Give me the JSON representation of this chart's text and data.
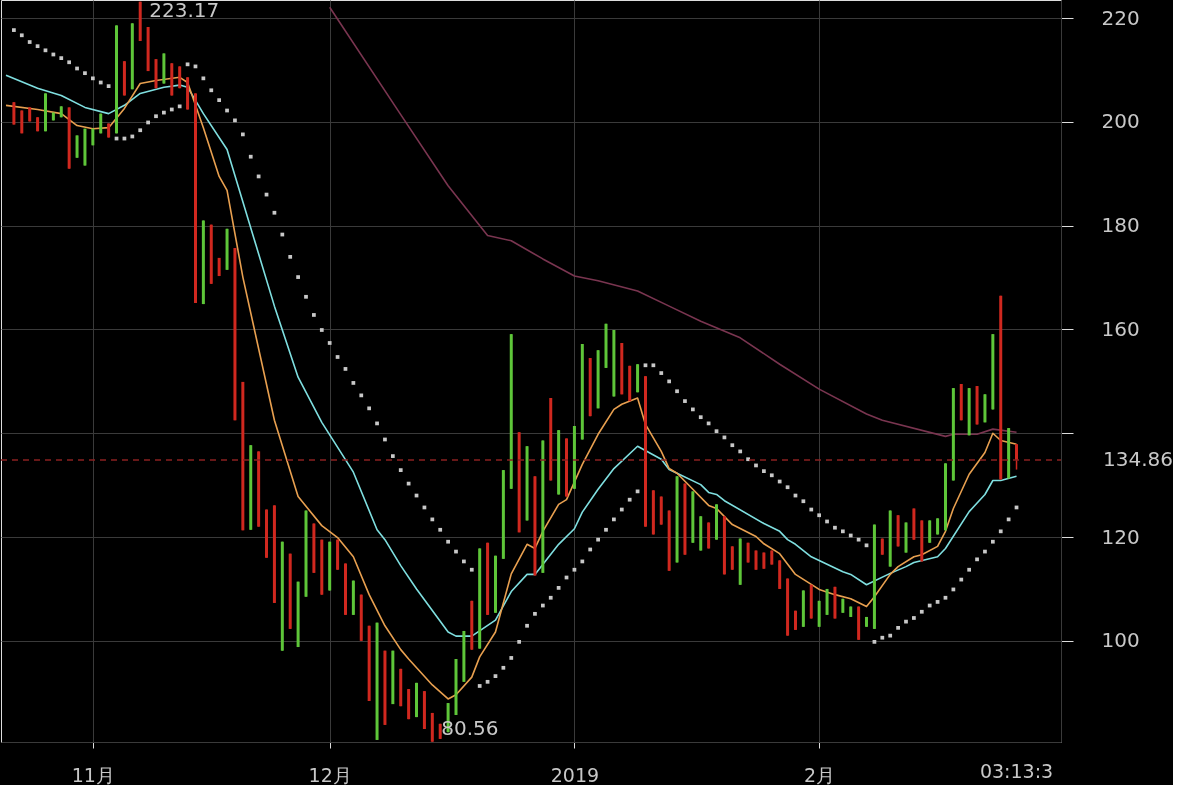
{
  "chart_data": {
    "type": "candlestick",
    "x": [
      "2018-10-22",
      "2018-10-23",
      "2018-10-24",
      "2018-10-25",
      "2018-10-26",
      "2018-10-27",
      "2018-10-28",
      "2018-10-29",
      "2018-10-30",
      "2018-10-31",
      "2018-11-01",
      "2018-11-02",
      "2018-11-03",
      "2018-11-04",
      "2018-11-05",
      "2018-11-06",
      "2018-11-07",
      "2018-11-08",
      "2018-11-09",
      "2018-11-10",
      "2018-11-11",
      "2018-11-12",
      "2018-11-13",
      "2018-11-14",
      "2018-11-15",
      "2018-11-16",
      "2018-11-17",
      "2018-11-18",
      "2018-11-19",
      "2018-11-20",
      "2018-11-21",
      "2018-11-22",
      "2018-11-23",
      "2018-11-24",
      "2018-11-25",
      "2018-11-26",
      "2018-11-27",
      "2018-11-28",
      "2018-11-29",
      "2018-11-30",
      "2018-12-01",
      "2018-12-02",
      "2018-12-03",
      "2018-12-04",
      "2018-12-05",
      "2018-12-06",
      "2018-12-07",
      "2018-12-08",
      "2018-12-09",
      "2018-12-10",
      "2018-12-11",
      "2018-12-12",
      "2018-12-13",
      "2018-12-14",
      "2018-12-15",
      "2018-12-16",
      "2018-12-17",
      "2018-12-18",
      "2018-12-19",
      "2018-12-20",
      "2018-12-21",
      "2018-12-22",
      "2018-12-23",
      "2018-12-24",
      "2018-12-25",
      "2018-12-26",
      "2018-12-27",
      "2018-12-28",
      "2018-12-29",
      "2018-12-30",
      "2018-12-31",
      "2019-01-01",
      "2019-01-02",
      "2019-01-03",
      "2019-01-04",
      "2019-01-05",
      "2019-01-06",
      "2019-01-07",
      "2019-01-08",
      "2019-01-09",
      "2019-01-10",
      "2019-01-11",
      "2019-01-12",
      "2019-01-13",
      "2019-01-14",
      "2019-01-15",
      "2019-01-16",
      "2019-01-17",
      "2019-01-18",
      "2019-01-19",
      "2019-01-20",
      "2019-01-21",
      "2019-01-22",
      "2019-01-23",
      "2019-01-24",
      "2019-01-25",
      "2019-01-26",
      "2019-01-27",
      "2019-01-28",
      "2019-01-29",
      "2019-01-30",
      "2019-01-31",
      "2019-02-01",
      "2019-02-02",
      "2019-02-03",
      "2019-02-04",
      "2019-02-05",
      "2019-02-06",
      "2019-02-07",
      "2019-02-08",
      "2019-02-09",
      "2019-02-10",
      "2019-02-11",
      "2019-02-12",
      "2019-02-13",
      "2019-02-14",
      "2019-02-15",
      "2019-02-16",
      "2019-02-17",
      "2019-02-18",
      "2019-02-19",
      "2019-02-20",
      "2019-02-21",
      "2019-02-22",
      "2019-02-23",
      "2019-02-24",
      "2019-02-25",
      "2019-02-26"
    ],
    "ohlc": [
      [
        203.8,
        203.8,
        199.5,
        199.5
      ],
      [
        202.2,
        202.2,
        197.8,
        197.8
      ],
      [
        202.8,
        202.8,
        200.1,
        200.1
      ],
      [
        200.9,
        200.9,
        198.2,
        198.2
      ],
      [
        198.2,
        205.5,
        198.2,
        205.5
      ],
      [
        200.3,
        201.8,
        200.3,
        201.8
      ],
      [
        200.9,
        203,
        200.9,
        203
      ],
      [
        202.8,
        202.8,
        191,
        191
      ],
      [
        193.1,
        197.4,
        193.1,
        197.4
      ],
      [
        191.6,
        198.7,
        191.6,
        198.7
      ],
      [
        195.5,
        198.7,
        195.5,
        198.7
      ],
      [
        197.8,
        201.6,
        197.8,
        201.6
      ],
      [
        199.7,
        199.7,
        197,
        197
      ],
      [
        197.8,
        218.6,
        197.8,
        218.6
      ],
      [
        211.7,
        211.7,
        205.1,
        205.1
      ],
      [
        206.3,
        219,
        206.3,
        219
      ],
      [
        223.17,
        223.17,
        215.6,
        215.6
      ],
      [
        218.3,
        218.3,
        209.8,
        209.8
      ],
      [
        212.1,
        212.1,
        206.5,
        206.5
      ],
      [
        207.4,
        213.2,
        207.4,
        213.2
      ],
      [
        211.3,
        211.3,
        205.1,
        205.1
      ],
      [
        210.7,
        210.7,
        206.5,
        206.5
      ],
      [
        208.6,
        208.6,
        202.4,
        202.4
      ],
      [
        205.5,
        205.5,
        165.1,
        165.1
      ],
      [
        164.9,
        181,
        164.9,
        181
      ],
      [
        180.2,
        180.2,
        168.8,
        168.8
      ],
      [
        173.8,
        173.8,
        170.3,
        170.3
      ],
      [
        171.5,
        179.4,
        171.5,
        179.4
      ],
      [
        175.7,
        175.7,
        142.5,
        142.5
      ],
      [
        149.9,
        149.9,
        121.3,
        121.3
      ],
      [
        121.4,
        137.7,
        121.4,
        137.7
      ],
      [
        136.5,
        136.5,
        122,
        122
      ],
      [
        125.3,
        125.3,
        116,
        116
      ],
      [
        126.1,
        126.1,
        107.3,
        107.3
      ],
      [
        98.1,
        119.1,
        98.1,
        119.1
      ],
      [
        116.8,
        116.8,
        102.3,
        102.3
      ],
      [
        98.8,
        111.4,
        98.8,
        111.4
      ],
      [
        108.5,
        125.1,
        108.5,
        125.1
      ],
      [
        122.6,
        122.6,
        113.1,
        113.1
      ],
      [
        119.5,
        119.5,
        108.9,
        108.9
      ],
      [
        109.7,
        119.1,
        109.7,
        119.1
      ],
      [
        119.5,
        119.5,
        113.7,
        113.7
      ],
      [
        114.9,
        114.9,
        105,
        105
      ],
      [
        105,
        111.6,
        105,
        111.6
      ],
      [
        108.9,
        108.9,
        100,
        100
      ],
      [
        102.9,
        102.9,
        88.4,
        88.4
      ],
      [
        80.9,
        103.5,
        80.9,
        103.5
      ],
      [
        98.1,
        98.1,
        83.8,
        83.8
      ],
      [
        87.8,
        98.1,
        87.8,
        98.1
      ],
      [
        94.6,
        94.6,
        87.4,
        87.4
      ],
      [
        90.7,
        90.7,
        84.9,
        84.9
      ],
      [
        85.3,
        91.9,
        85.3,
        91.9
      ],
      [
        90.3,
        90.3,
        83,
        83
      ],
      [
        86.1,
        86.1,
        80.56,
        80.56
      ],
      [
        84,
        84,
        81.1,
        81.1
      ],
      [
        82.4,
        88,
        82.4,
        88
      ],
      [
        85.7,
        96.5,
        85.7,
        96.5
      ],
      [
        92.1,
        101.9,
        92.1,
        101.9
      ],
      [
        107.7,
        107.7,
        98.3,
        98.3
      ],
      [
        98.5,
        117.8,
        98.5,
        117.8
      ],
      [
        118.9,
        118.9,
        105,
        105
      ],
      [
        105.4,
        116.4,
        105.4,
        116.4
      ],
      [
        115.8,
        132.9,
        115.8,
        132.9
      ],
      [
        129.3,
        159.1,
        129.3,
        159.1
      ],
      [
        140.2,
        140.2,
        120.9,
        120.9
      ],
      [
        123.2,
        137.5,
        123.2,
        137.5
      ],
      [
        131.7,
        131.7,
        112.6,
        112.6
      ],
      [
        113.1,
        138.6,
        113.1,
        138.6
      ],
      [
        146.8,
        146.8,
        130.9,
        130.9
      ],
      [
        128.2,
        140.6,
        128.2,
        140.6
      ],
      [
        139,
        139,
        127.8,
        127.8
      ],
      [
        129.3,
        141.4,
        129.3,
        141.4
      ],
      [
        138.8,
        157.2,
        138.8,
        157.2
      ],
      [
        154.5,
        154.5,
        143.3,
        143.3
      ],
      [
        144.8,
        156,
        144.8,
        156
      ],
      [
        152.6,
        161.1,
        152.6,
        161.1
      ],
      [
        147.1,
        159.9,
        147.1,
        159.9
      ],
      [
        157.4,
        157.4,
        147.5,
        147.5
      ],
      [
        153,
        153,
        146.2,
        146.2
      ],
      [
        147.9,
        153.3,
        147.9,
        153.3
      ],
      [
        151,
        151,
        122,
        122
      ],
      [
        129,
        129,
        120.5,
        120.5
      ],
      [
        127.8,
        127.8,
        122.4,
        122.4
      ],
      [
        125.1,
        125.1,
        113.5,
        113.5
      ],
      [
        115.1,
        131.7,
        115.1,
        131.7
      ],
      [
        130.3,
        130.3,
        116.6,
        116.6
      ],
      [
        118.9,
        128.8,
        118.9,
        128.8
      ],
      [
        117.4,
        124,
        117.4,
        124
      ],
      [
        122.8,
        122.8,
        117.8,
        117.8
      ],
      [
        119.5,
        126.3,
        119.5,
        126.3
      ],
      [
        124,
        124,
        112.8,
        112.8
      ],
      [
        118.2,
        118.2,
        113.7,
        113.7
      ],
      [
        110.8,
        119.7,
        110.8,
        119.7
      ],
      [
        118.9,
        118.9,
        115.1,
        115.1
      ],
      [
        117.4,
        117.4,
        113.7,
        113.7
      ],
      [
        117,
        117,
        113.9,
        113.9
      ],
      [
        117.4,
        117.4,
        114.7,
        114.7
      ],
      [
        115.5,
        115.5,
        110,
        110
      ],
      [
        112,
        112,
        101,
        101
      ],
      [
        105.8,
        105.8,
        102.1,
        102.1
      ],
      [
        102.7,
        109.7,
        102.7,
        109.7
      ],
      [
        110.8,
        110.8,
        104.3,
        104.3
      ],
      [
        102.7,
        107.7,
        102.7,
        107.7
      ],
      [
        105,
        110,
        105,
        110
      ],
      [
        110.4,
        110.4,
        104.3,
        104.3
      ],
      [
        105.4,
        108.1,
        105.4,
        108.1
      ],
      [
        104.6,
        106.6,
        104.6,
        106.6
      ],
      [
        106.6,
        106.6,
        100.2,
        100.2
      ],
      [
        102.7,
        104.6,
        102.7,
        104.6
      ],
      [
        102.3,
        122.4,
        102.3,
        122.4
      ],
      [
        119.7,
        119.7,
        116.6,
        116.6
      ],
      [
        114.3,
        125.1,
        114.3,
        125.1
      ],
      [
        124.2,
        124.2,
        118.2,
        118.2
      ],
      [
        117,
        122.8,
        117,
        122.8
      ],
      [
        125.5,
        125.5,
        119.5,
        119.5
      ],
      [
        123.2,
        123.2,
        115.3,
        115.3
      ],
      [
        118.9,
        123.2,
        118.9,
        123.2
      ],
      [
        120.5,
        123.6,
        120.5,
        123.6
      ],
      [
        121.3,
        134.2,
        121.3,
        134.2
      ],
      [
        130.9,
        148.7,
        130.9,
        148.7
      ],
      [
        149.5,
        149.5,
        142.5,
        142.5
      ],
      [
        139.6,
        148.7,
        139.6,
        148.7
      ],
      [
        149.1,
        149.1,
        141.7,
        141.7
      ],
      [
        142.1,
        147.5,
        142.1,
        147.5
      ],
      [
        144.6,
        159.1,
        144.6,
        159.1
      ],
      [
        166.5,
        166.5,
        131.1,
        131.1
      ],
      [
        131.3,
        141,
        131.3,
        141
      ],
      [
        137.9,
        137.9,
        133,
        134.86
      ]
    ],
    "colors": [
      "#d0281f",
      "#d0281f",
      "#d0281f",
      "#d0281f",
      "#5ec639",
      "#5ec639",
      "#5ec639",
      "#d0281f",
      "#5ec639",
      "#5ec639",
      "#5ec639",
      "#5ec639",
      "#d0281f",
      "#5ec639",
      "#d0281f",
      "#5ec639",
      "#d0281f",
      "#d0281f",
      "#d0281f",
      "#5ec639",
      "#d0281f",
      "#d0281f",
      "#d0281f",
      "#d0281f",
      "#5ec639",
      "#d0281f",
      "#d0281f",
      "#5ec639",
      "#d0281f",
      "#d0281f",
      "#5ec639",
      "#d0281f",
      "#d0281f",
      "#d0281f",
      "#5ec639",
      "#d0281f",
      "#5ec639",
      "#5ec639",
      "#d0281f",
      "#d0281f",
      "#5ec639",
      "#d0281f",
      "#d0281f",
      "#5ec639",
      "#d0281f",
      "#d0281f",
      "#5ec639",
      "#d0281f",
      "#5ec639",
      "#d0281f",
      "#d0281f",
      "#5ec639",
      "#d0281f",
      "#d0281f",
      "#d0281f",
      "#5ec639",
      "#5ec639",
      "#5ec639",
      "#d0281f",
      "#5ec639",
      "#d0281f",
      "#5ec639",
      "#5ec639",
      "#5ec639",
      "#d0281f",
      "#5ec639",
      "#d0281f",
      "#5ec639",
      "#d0281f",
      "#5ec639",
      "#d0281f",
      "#5ec639",
      "#5ec639",
      "#d0281f",
      "#5ec639",
      "#5ec639",
      "#5ec639",
      "#d0281f",
      "#d0281f",
      "#5ec639",
      "#d0281f",
      "#d0281f",
      "#d0281f",
      "#d0281f",
      "#5ec639",
      "#d0281f",
      "#5ec639",
      "#5ec639",
      "#d0281f",
      "#5ec639",
      "#d0281f",
      "#d0281f",
      "#5ec639",
      "#d0281f",
      "#d0281f",
      "#d0281f",
      "#d0281f",
      "#d0281f",
      "#d0281f",
      "#d0281f",
      "#5ec639",
      "#d0281f",
      "#5ec639",
      "#5ec639",
      "#d0281f",
      "#5ec639",
      "#5ec639",
      "#d0281f",
      "#5ec639",
      "#5ec639",
      "#d0281f",
      "#5ec639",
      "#d0281f",
      "#5ec639",
      "#d0281f",
      "#d0281f",
      "#5ec639",
      "#5ec639",
      "#5ec639",
      "#5ec639",
      "#d0281f",
      "#5ec639",
      "#d0281f",
      "#5ec639",
      "#5ec639",
      "#d0281f",
      "#5ec639",
      "#d0281f"
    ],
    "series": [
      {
        "type": "line",
        "color": "#7a3550",
        "x": [
          "2018-12-01",
          "2018-12-10",
          "2018-12-16",
          "2018-12-21",
          "2018-12-24",
          "2018-12-28",
          "2019-01-01",
          "2019-01-04",
          "2019-01-09",
          "2019-01-13",
          "2019-01-17",
          "2019-01-22",
          "2019-01-27",
          "2019-02-01",
          "2019-02-07",
          "2019-02-09",
          "2019-02-17",
          "2019-02-18",
          "2019-02-21",
          "2019-02-23",
          "2019-02-26"
        ],
        "values": [
          222.1,
          201.4,
          187.7,
          178.1,
          177.1,
          173.6,
          170.3,
          169.4,
          167.4,
          164.5,
          161.6,
          158.4,
          153.3,
          148.5,
          143.7,
          142.5,
          139.4,
          139.8,
          139.8,
          140.8,
          140.2
        ]
      },
      {
        "type": "line",
        "color": "#7fdfe0",
        "x": [
          "2018-10-21",
          "2018-10-25",
          "2018-10-28",
          "2018-10-31",
          "2018-11-03",
          "2018-11-05",
          "2018-11-07",
          "2018-11-10",
          "2018-11-12",
          "2018-11-13",
          "2018-11-15",
          "2018-11-18",
          "2018-11-24",
          "2018-11-27",
          "2018-11-30",
          "2018-12-04",
          "2018-12-07",
          "2018-12-08",
          "2018-12-10",
          "2018-12-12",
          "2018-12-16",
          "2018-12-17",
          "2018-12-19",
          "2018-12-22",
          "2018-12-24",
          "2018-12-26",
          "2018-12-27",
          "2018-12-30",
          "2019-01-01",
          "2019-01-02",
          "2019-01-04",
          "2019-01-06",
          "2019-01-09",
          "2019-01-12",
          "2019-01-13",
          "2019-01-14",
          "2019-01-17",
          "2019-01-18",
          "2019-01-19",
          "2019-01-20",
          "2019-01-25",
          "2019-01-27",
          "2019-01-28",
          "2019-01-29",
          "2019-01-31",
          "2019-02-04",
          "2019-02-05",
          "2019-02-07",
          "2019-02-10",
          "2019-02-12",
          "2019-02-13",
          "2019-02-16",
          "2019-02-17",
          "2019-02-20",
          "2019-02-22",
          "2019-02-23",
          "2019-02-24",
          "2019-02-26"
        ],
        "values": [
          209,
          206.5,
          205.1,
          202.8,
          201.6,
          203.2,
          205.5,
          206.7,
          207.1,
          206.7,
          201.6,
          194.7,
          164.5,
          150.8,
          142.1,
          132.5,
          121.4,
          119.5,
          114.5,
          110,
          101.7,
          100.9,
          100.9,
          104,
          109.5,
          112.8,
          112.8,
          118.6,
          121.6,
          124.8,
          129.2,
          133.2,
          137.5,
          135,
          133,
          132.3,
          130.1,
          128.6,
          128.2,
          127,
          122.6,
          121.1,
          119.5,
          118.6,
          116.2,
          113.3,
          112.8,
          110.8,
          113,
          114.3,
          115.1,
          116.2,
          117.8,
          124.9,
          128.2,
          130.9,
          130.9,
          131.7
        ]
      },
      {
        "type": "line",
        "color": "#e8a050",
        "x": [
          "2018-10-21",
          "2018-10-25",
          "2018-10-28",
          "2018-10-30",
          "2018-11-01",
          "2018-11-03",
          "2018-11-05",
          "2018-11-07",
          "2018-11-09",
          "2018-11-12",
          "2018-11-13",
          "2018-11-15",
          "2018-11-17",
          "2018-11-18",
          "2018-11-20",
          "2018-11-24",
          "2018-11-27",
          "2018-11-30",
          "2018-12-02",
          "2018-12-04",
          "2018-12-06",
          "2018-12-08",
          "2018-12-10",
          "2018-12-11",
          "2018-12-14",
          "2018-12-16",
          "2018-12-17",
          "2018-12-19",
          "2018-12-20",
          "2018-12-22",
          "2018-12-24",
          "2018-12-26",
          "2018-12-27",
          "2018-12-28",
          "2018-12-30",
          "2018-12-31",
          "2019-01-02",
          "2019-01-04",
          "2019-01-06",
          "2019-01-07",
          "2019-01-09",
          "2019-01-10",
          "2019-01-12",
          "2019-01-13",
          "2019-01-14",
          "2019-01-16",
          "2019-01-18",
          "2019-01-19",
          "2019-01-21",
          "2019-01-24",
          "2019-01-25",
          "2019-01-27",
          "2019-01-29",
          "2019-02-01",
          "2019-02-03",
          "2019-02-05",
          "2019-02-07",
          "2019-02-08",
          "2019-02-10",
          "2019-02-11",
          "2019-02-13",
          "2019-02-14",
          "2019-02-16",
          "2019-02-17",
          "2019-02-18",
          "2019-02-20",
          "2019-02-22",
          "2019-02-23",
          "2019-02-24",
          "2019-02-26"
        ],
        "values": [
          203.2,
          202.4,
          201.6,
          199.3,
          198.7,
          198.9,
          202.6,
          207.4,
          208,
          208.6,
          207.6,
          198.9,
          189.5,
          186.8,
          170.1,
          142.5,
          127.8,
          122.2,
          119.9,
          116.2,
          108.9,
          102.9,
          98.3,
          96.5,
          91.5,
          88.8,
          89.6,
          93,
          96.9,
          101.7,
          112.9,
          118.6,
          117.8,
          121.1,
          126.3,
          127.2,
          134,
          139.8,
          144.6,
          145.6,
          146.8,
          141.7,
          136.5,
          133.2,
          132.3,
          129.2,
          126.1,
          125.5,
          122.4,
          120.1,
          118.7,
          116.8,
          112.8,
          109.9,
          108.9,
          108.1,
          106.6,
          108.5,
          112.8,
          114.3,
          116.2,
          116.6,
          118.2,
          121.1,
          125.5,
          132.1,
          136.3,
          140,
          138.6,
          137.9
        ]
      },
      {
        "type": "scatter",
        "marker": "square",
        "color": "#c8c8c8",
        "values": [
          217.7,
          216.7,
          215.4,
          214.6,
          213.8,
          213,
          212.3,
          211.5,
          210.3,
          209.4,
          208.4,
          207.6,
          206.9,
          196.8,
          196.8,
          197.2,
          198.4,
          199.9,
          201.1,
          201.8,
          202.4,
          203,
          211.1,
          210.7,
          208.4,
          206.1,
          204.2,
          202.2,
          200.3,
          197.6,
          193.3,
          189.5,
          186,
          182.5,
          178.3,
          174,
          170.1,
          166.3,
          162.8,
          159.9,
          157.4,
          154.7,
          152.4,
          149.7,
          147.3,
          144.8,
          141.9,
          138.8,
          135.6,
          132.9,
          130.3,
          128,
          125.7,
          123.4,
          121.4,
          119.1,
          117.2,
          115.3,
          113.7,
          91.3,
          92.1,
          93.2,
          94.8,
          96.7,
          99.8,
          102.9,
          105.2,
          106.8,
          108.3,
          110.2,
          112.2,
          113.7,
          115.3,
          117.6,
          119.5,
          121.4,
          123.4,
          125.3,
          127.2,
          128.8,
          153.1,
          153.1,
          151.6,
          150,
          148.1,
          146.2,
          144.6,
          143.1,
          141.9,
          140.4,
          139.2,
          137.7,
          136.5,
          135,
          133.8,
          132.7,
          131.9,
          130.7,
          129.6,
          128,
          126.9,
          125.3,
          124.2,
          123,
          121.8,
          121.1,
          120.3,
          119.5,
          118.4,
          99.8,
          100.6,
          101,
          102.5,
          103.7,
          104.4,
          105.6,
          106.8,
          107.5,
          108.3,
          109.9,
          111.8,
          113.7,
          115.7,
          117.2,
          119.1,
          121.1,
          123.4,
          125.7
        ]
      }
    ],
    "xlim": [
      "2018-10-21",
      "2019-03-03"
    ],
    "ylim": [
      80.5,
      223.5
    ],
    "xticks": [
      {
        "value": "2018-11-01",
        "label": "11月"
      },
      {
        "value": "2018-12-01",
        "label": "12月"
      },
      {
        "value": "2019-01-01",
        "label": "2019"
      },
      {
        "value": "2019-02-01",
        "label": "2月"
      }
    ],
    "yticks": [
      100,
      120,
      {
        "value": 140,
        "label": null
      },
      160,
      180,
      200,
      220
    ],
    "grid": true,
    "ref_lines": [
      {
        "axis": "y",
        "value": 134.86,
        "label": "134.86",
        "color": "#8b2020",
        "line_style": "dashed"
      }
    ],
    "annotations": [
      {
        "text": "223.17",
        "x": "2018-11-07",
        "y": 223.17
      },
      {
        "text": "80.56",
        "x": "2018-12-14",
        "y": 80.56
      },
      "03:13:3"
    ]
  }
}
